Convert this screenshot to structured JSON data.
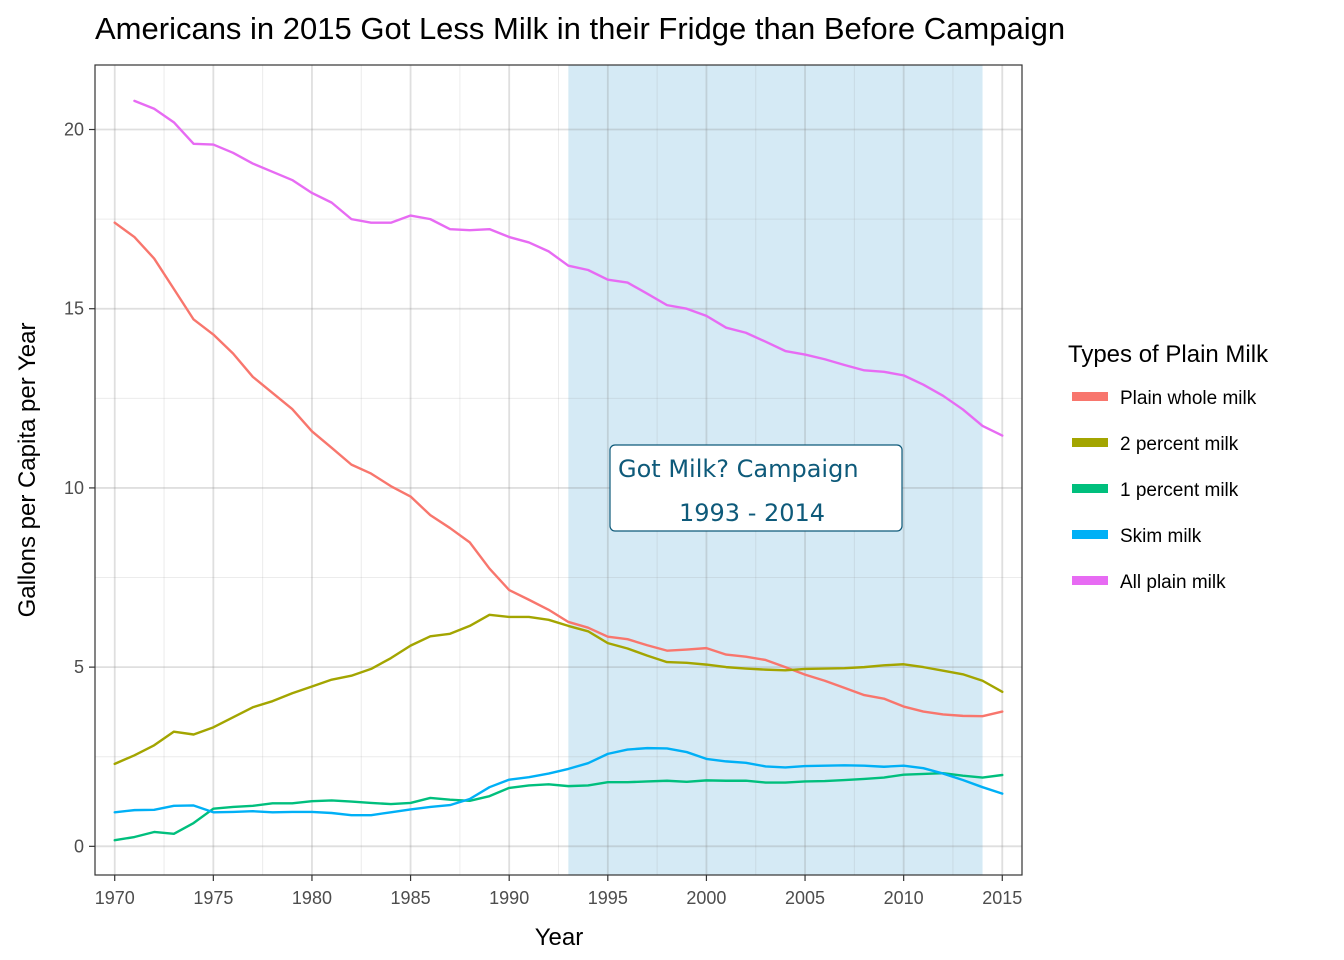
{
  "chart_data": {
    "type": "line",
    "title": "Americans in 2015 Got Less Milk in their Fridge than Before Campaign",
    "xlabel": "Year",
    "ylabel": "Gallons per Capita per Year",
    "xlim": [
      1969,
      2016
    ],
    "ylim": [
      -0.8,
      21.8
    ],
    "x_ticks": [
      1970,
      1975,
      1980,
      1985,
      1990,
      1995,
      2000,
      2005,
      2010,
      2015
    ],
    "y_ticks": [
      0,
      5,
      10,
      15,
      20
    ],
    "legend_title": "Types of Plain Milk",
    "legend_position": "right",
    "highlight": {
      "start": 1993,
      "end": 2014,
      "color": "#d5eaf5"
    },
    "annotation": {
      "line1": "Got Milk? Campaign",
      "line2": "1993 - 2014"
    },
    "series": [
      {
        "name": "Plain whole milk",
        "color": "#f8766d",
        "x_start": 1970,
        "values": [
          17.4,
          17.0,
          16.4,
          15.55,
          14.7,
          14.28,
          13.75,
          13.1,
          12.65,
          12.2,
          11.58,
          11.12,
          10.65,
          10.4,
          10.05,
          9.76,
          9.24,
          8.88,
          8.48,
          7.75,
          7.15,
          6.88,
          6.6,
          6.26,
          6.1,
          5.85,
          5.78,
          5.61,
          5.46,
          5.49,
          5.53,
          5.35,
          5.29,
          5.2,
          5.0,
          4.79,
          4.62,
          4.42,
          4.22,
          4.12,
          3.9,
          3.76,
          3.68,
          3.64,
          3.63,
          3.76
        ]
      },
      {
        "name": "2 percent milk",
        "color": "#a3a500",
        "x_start": 1970,
        "values": [
          2.3,
          2.54,
          2.82,
          3.2,
          3.12,
          3.32,
          3.6,
          3.88,
          4.05,
          4.27,
          4.46,
          4.65,
          4.76,
          4.95,
          5.25,
          5.6,
          5.86,
          5.93,
          6.15,
          6.46,
          6.4,
          6.4,
          6.32,
          6.15,
          6.0,
          5.67,
          5.52,
          5.32,
          5.14,
          5.12,
          5.07,
          5.0,
          4.96,
          4.93,
          4.91,
          4.95,
          4.96,
          4.97,
          5.0,
          5.05,
          5.08,
          5.0,
          4.9,
          4.8,
          4.62,
          4.31
        ]
      },
      {
        "name": "1 percent milk",
        "color": "#00bf7d",
        "x_start": 1970,
        "values": [
          0.17,
          0.26,
          0.4,
          0.35,
          0.65,
          1.05,
          1.1,
          1.13,
          1.2,
          1.2,
          1.26,
          1.28,
          1.25,
          1.21,
          1.18,
          1.21,
          1.35,
          1.3,
          1.27,
          1.4,
          1.63,
          1.7,
          1.73,
          1.68,
          1.7,
          1.79,
          1.79,
          1.81,
          1.83,
          1.8,
          1.84,
          1.83,
          1.83,
          1.78,
          1.78,
          1.81,
          1.82,
          1.85,
          1.88,
          1.92,
          2.0,
          2.02,
          2.04,
          1.97,
          1.92,
          1.99
        ]
      },
      {
        "name": "Skim milk",
        "color": "#00b0f6",
        "x_start": 1970,
        "values": [
          0.95,
          1.01,
          1.02,
          1.13,
          1.14,
          0.95,
          0.96,
          0.98,
          0.95,
          0.96,
          0.96,
          0.93,
          0.87,
          0.87,
          0.95,
          1.03,
          1.1,
          1.15,
          1.32,
          1.65,
          1.86,
          1.93,
          2.03,
          2.16,
          2.32,
          2.58,
          2.7,
          2.74,
          2.73,
          2.63,
          2.44,
          2.37,
          2.33,
          2.23,
          2.2,
          2.24,
          2.25,
          2.26,
          2.25,
          2.22,
          2.25,
          2.18,
          2.03,
          1.85,
          1.65,
          1.47
        ]
      },
      {
        "name": "All plain milk",
        "color": "#e76bf3",
        "x_start": 1971,
        "values": [
          20.8,
          20.58,
          20.2,
          19.6,
          19.58,
          19.35,
          19.05,
          18.82,
          18.59,
          18.23,
          17.96,
          17.5,
          17.4,
          17.4,
          17.6,
          17.5,
          17.22,
          17.19,
          17.22,
          17.0,
          16.85,
          16.6,
          16.2,
          16.08,
          15.81,
          15.73,
          15.42,
          15.1,
          15.0,
          14.8,
          14.47,
          14.33,
          14.08,
          13.82,
          13.72,
          13.59,
          13.43,
          13.28,
          13.24,
          13.14,
          12.88,
          12.57,
          12.19,
          11.73,
          11.46
        ]
      }
    ]
  }
}
